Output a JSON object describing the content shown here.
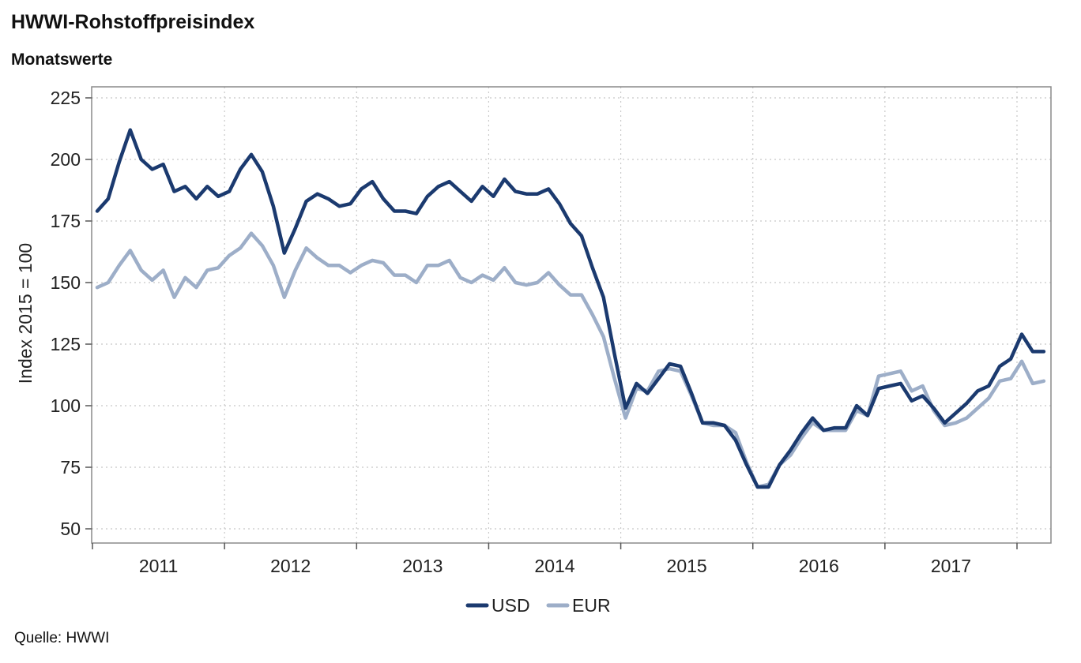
{
  "header": {
    "title": "HWWI-Rohstoffpreisindex",
    "subtitle": "Monatswerte",
    "source": "Quelle: HWWI"
  },
  "chart_data": {
    "type": "line",
    "ylabel": "Index 2015 = 100",
    "xlabel": "",
    "ylim": [
      50,
      225
    ],
    "yticks": [
      50,
      75,
      100,
      125,
      150,
      175,
      200,
      225
    ],
    "x_tick_labels": [
      "2011",
      "2012",
      "2013",
      "2014",
      "2015",
      "2016",
      "2017"
    ],
    "grid": true,
    "legend_position": "bottom-center",
    "x": [
      "2011-01",
      "2011-02",
      "2011-03",
      "2011-04",
      "2011-05",
      "2011-06",
      "2011-07",
      "2011-08",
      "2011-09",
      "2011-10",
      "2011-11",
      "2011-12",
      "2012-01",
      "2012-02",
      "2012-03",
      "2012-04",
      "2012-05",
      "2012-06",
      "2012-07",
      "2012-08",
      "2012-09",
      "2012-10",
      "2012-11",
      "2012-12",
      "2013-01",
      "2013-02",
      "2013-03",
      "2013-04",
      "2013-05",
      "2013-06",
      "2013-07",
      "2013-08",
      "2013-09",
      "2013-10",
      "2013-11",
      "2013-12",
      "2014-01",
      "2014-02",
      "2014-03",
      "2014-04",
      "2014-05",
      "2014-06",
      "2014-07",
      "2014-08",
      "2014-09",
      "2014-10",
      "2014-11",
      "2014-12",
      "2015-01",
      "2015-02",
      "2015-03",
      "2015-04",
      "2015-05",
      "2015-06",
      "2015-07",
      "2015-08",
      "2015-09",
      "2015-10",
      "2015-11",
      "2015-12",
      "2016-01",
      "2016-02",
      "2016-03",
      "2016-04",
      "2016-05",
      "2016-06",
      "2016-07",
      "2016-08",
      "2016-09",
      "2016-10",
      "2016-11",
      "2016-12",
      "2017-01",
      "2017-02",
      "2017-03",
      "2017-04",
      "2017-05",
      "2017-06",
      "2017-07",
      "2017-08",
      "2017-09",
      "2017-10",
      "2017-11",
      "2017-12",
      "2018-01",
      "2018-02",
      "2018-03"
    ],
    "series": [
      {
        "name": "USD",
        "color": "#1b3a6f",
        "values": [
          179,
          184,
          199,
          212,
          200,
          196,
          198,
          187,
          189,
          184,
          189,
          185,
          187,
          196,
          202,
          195,
          181,
          162,
          172,
          183,
          186,
          184,
          181,
          182,
          188,
          191,
          184,
          179,
          179,
          178,
          185,
          189,
          191,
          187,
          183,
          189,
          185,
          192,
          187,
          186,
          186,
          188,
          182,
          174,
          169,
          156,
          144,
          121,
          99,
          109,
          105,
          111,
          117,
          116,
          105,
          93,
          93,
          92,
          86,
          76,
          67,
          67,
          76,
          82,
          89,
          95,
          90,
          91,
          91,
          100,
          96,
          107,
          108,
          109,
          102,
          104,
          99,
          93,
          97,
          101,
          106,
          108,
          116,
          119,
          129,
          122,
          122
        ]
      },
      {
        "name": "EUR",
        "color": "#9daec8",
        "values": [
          148,
          150,
          157,
          163,
          155,
          151,
          155,
          144,
          152,
          148,
          155,
          156,
          161,
          164,
          170,
          165,
          157,
          144,
          155,
          164,
          160,
          157,
          157,
          154,
          157,
          159,
          158,
          153,
          153,
          150,
          157,
          157,
          159,
          152,
          150,
          153,
          151,
          156,
          150,
          149,
          150,
          154,
          149,
          145,
          145,
          137,
          128,
          111,
          95,
          107,
          106,
          114,
          115,
          114,
          104,
          93,
          92,
          92,
          89,
          77,
          67,
          68,
          76,
          80,
          87,
          93,
          90,
          90,
          90,
          98,
          96,
          112,
          113,
          114,
          106,
          108,
          98,
          92,
          93,
          95,
          99,
          103,
          110,
          111,
          118,
          109,
          110
        ]
      }
    ]
  }
}
